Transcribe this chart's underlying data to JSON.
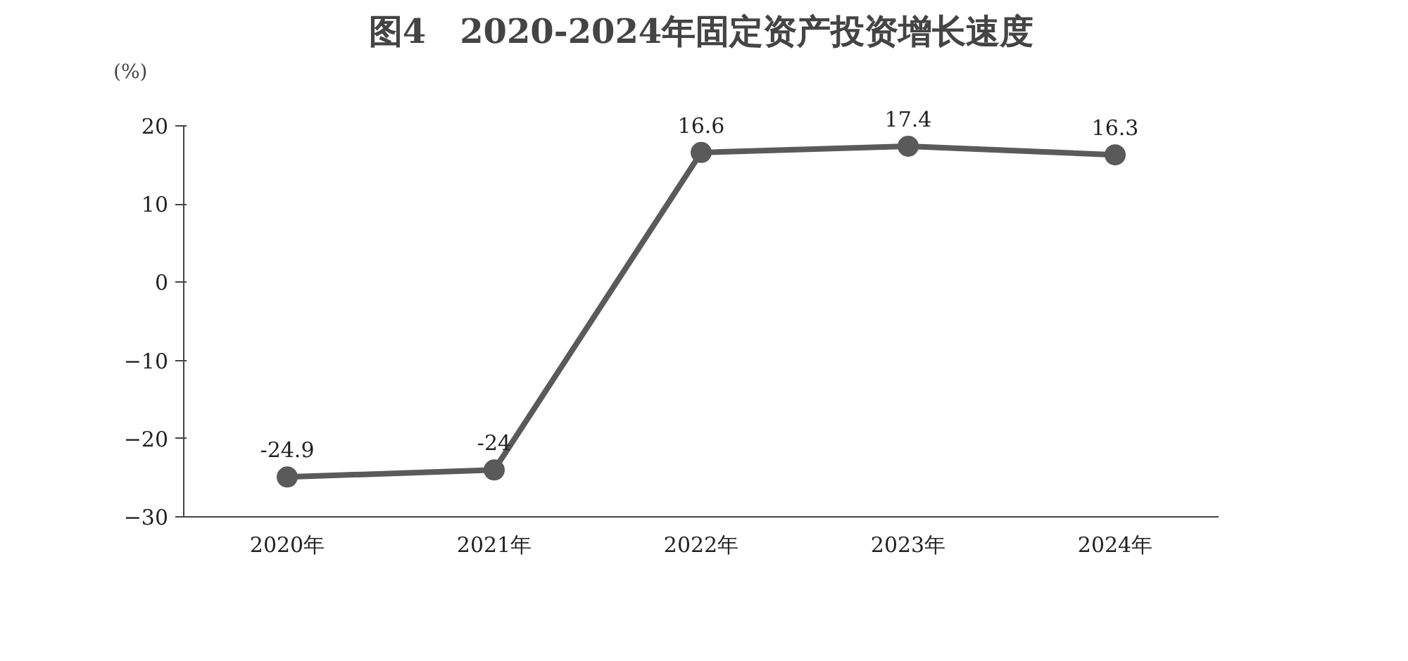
{
  "chart_data": {
    "type": "line",
    "title": "图4　2020-2024年固定资产投资增长速度",
    "ylabel": "(%)",
    "categories": [
      "2020年",
      "2021年",
      "2022年",
      "2023年",
      "2024年"
    ],
    "series": [
      {
        "color": "#5a5a5a",
        "values": [
          -24.9,
          -24,
          16.6,
          17.4,
          16.3
        ]
      }
    ],
    "ylim": [
      -30,
      20
    ],
    "yticks": [
      -30,
      -20,
      -10,
      0,
      10,
      20
    ],
    "grid": false,
    "marker": "circle",
    "line_style": "solid",
    "data_labels": true
  }
}
